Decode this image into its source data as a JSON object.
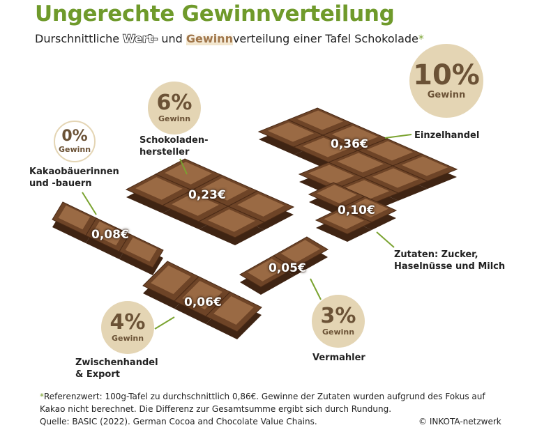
{
  "title": "Ungerechte Gewinnverteilung",
  "subtitle": {
    "pre": "Durschnittliche ",
    "wert": "Wert-",
    "mid": " und ",
    "gewinn": "Gewinn",
    "post": "verteilung einer Tafel Schokolade",
    "asterisk": "*"
  },
  "stages": [
    {
      "label": "Kakaobäuerinnen und -bauern",
      "value": "0,08€",
      "profit": "0%",
      "profit_label": "Gewinn"
    },
    {
      "label": "Schokoladen-hersteller",
      "value": "0,23€",
      "profit": "6%",
      "profit_label": "Gewinn"
    },
    {
      "label": "Einzelhandel",
      "value": "0,36€",
      "profit": "10%",
      "profit_label": "Gewinn"
    },
    {
      "label": "Zutaten: Zucker, Haselnüsse und Milch",
      "value": "0,10€"
    },
    {
      "label": "Vermahler",
      "value": "0,05€",
      "profit": "3%",
      "profit_label": "Gewinn"
    },
    {
      "label": "Zwischenhandel & Export",
      "value": "0,06€",
      "profit": "4%",
      "profit_label": "Gewinn"
    }
  ],
  "labels_lines": {
    "kakao1": "Kakaobäuerinnen",
    "kakao2": "und -bauern",
    "herst1": "Schokoladen-",
    "herst2": "hersteller",
    "zut1": "Zutaten: Zucker,",
    "zut2": "Haselnüsse und Milch",
    "zw1": "Zwischenhandel",
    "zw2": "& Export"
  },
  "footnote": {
    "asterisk": "*",
    "line1": "Referenzwert: 100g-Tafel zu durchschnittlich 0,86€. Gewinne der Zutaten wurden aufgrund des Fokus auf",
    "line2": "Kakao nicht berechnet. Die Differenz zur Gesamtsumme ergibt sich durch Rundung.",
    "source": "Quelle: BASIC (2022). German Cocoa and Chocolate Value Chains.",
    "copyright": "© INKOTA-netzwerk"
  },
  "colors": {
    "title": "#6f9a2b",
    "accent_line": "#7aa330",
    "chocolate": "#8a5a36",
    "profit_circle": "#e4d5b4"
  }
}
